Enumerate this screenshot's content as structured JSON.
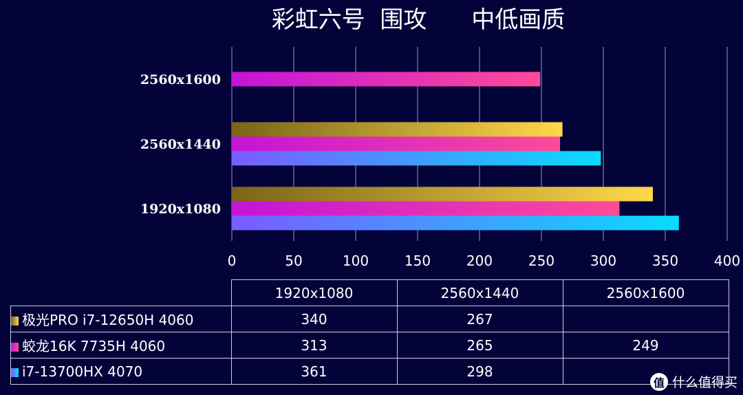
{
  "chart_data": {
    "type": "bar",
    "orientation": "horizontal",
    "title": "彩虹六号  围攻      中低画质",
    "categories": [
      "1920x1080",
      "2560x1440",
      "2560x1600"
    ],
    "series": [
      {
        "name": "极光PRO i7-12650H 4060",
        "values": [
          340,
          267,
          null
        ],
        "colors": [
          "#7a6418",
          "#ffd84a"
        ]
      },
      {
        "name": "蛟龙16K 7735H 4060",
        "values": [
          313,
          265,
          249
        ],
        "colors": [
          "#c414d8",
          "#ff4a98"
        ]
      },
      {
        "name": "i7-13700HX 4070",
        "values": [
          361,
          298,
          null
        ],
        "colors": [
          "#7a5cff",
          "#08dcff"
        ]
      }
    ],
    "xlim": [
      0,
      400
    ],
    "xticks": [
      "0",
      "50",
      "100",
      "150",
      "200",
      "250",
      "300",
      "350",
      "400"
    ],
    "grid": true,
    "legend": "data-table-below"
  },
  "table": {
    "headers": [
      "1920x1080",
      "2560x1440",
      "2560x1600"
    ],
    "rows": [
      {
        "label": "极光PRO i7-12650H 4060",
        "cells": [
          "340",
          "267",
          ""
        ]
      },
      {
        "label": "蛟龙16K 7735H 4060",
        "cells": [
          "313",
          "265",
          "249"
        ]
      },
      {
        "label": "i7-13700HX 4070",
        "cells": [
          "361",
          "298",
          ""
        ]
      }
    ]
  },
  "watermark": {
    "logo_char": "值",
    "text": "什么值得买"
  }
}
